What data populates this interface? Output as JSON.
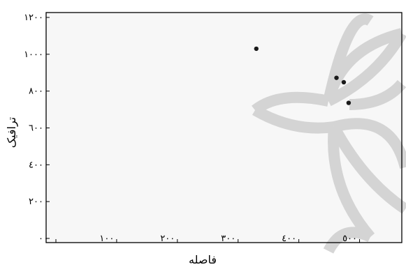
{
  "chart_data": {
    "type": "scatter",
    "title": "",
    "xlabel": "فاصله",
    "ylabel": "ترافیک",
    "xlim": [
      0,
      550
    ],
    "ylim": [
      0,
      1200
    ],
    "x_ticks": [
      0,
      100,
      200,
      300,
      400,
      500
    ],
    "y_ticks": [
      0,
      200,
      400,
      600,
      800,
      1000,
      1200
    ],
    "x_tick_labels": [
      "٠",
      "١٠٠",
      "٢٠٠",
      "٣٠٠",
      "٤٠٠",
      "٥٠٠"
    ],
    "y_tick_labels": [
      "٠",
      "٢٠٠",
      "٤٠٠",
      "٦٠٠",
      "٨٠٠",
      "١٠٠٠",
      "١٢٠٠"
    ],
    "grid": false,
    "legend": "none",
    "points": [
      {
        "x": 330,
        "y": 1030
      },
      {
        "x": 462,
        "y": 872
      },
      {
        "x": 474,
        "y": 848
      },
      {
        "x": 482,
        "y": 736
      }
    ],
    "colors": {
      "point": "#1a1a1a",
      "plot_background": "#f7f7f7",
      "axis": "#000000",
      "watermark": "#cfcfcf"
    }
  }
}
